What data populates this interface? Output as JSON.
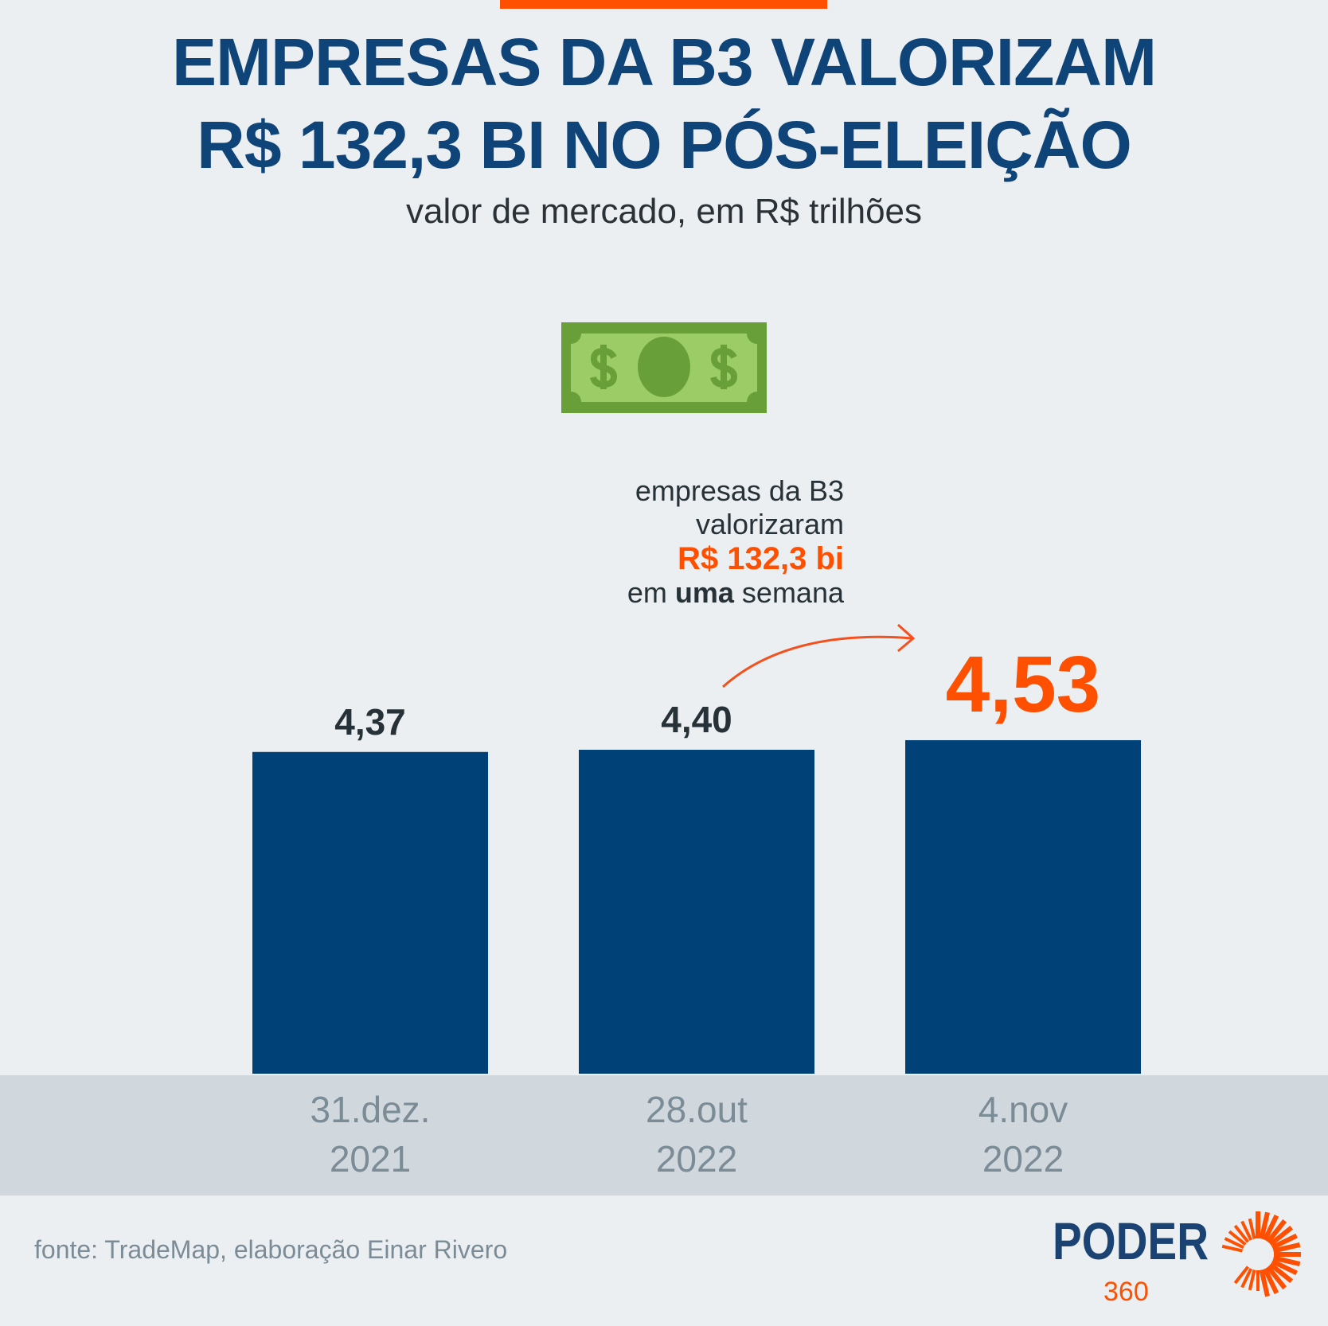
{
  "header": {
    "title_line1": "EMPRESAS DA B3 VALORIZAM",
    "title_line2": "R$ 132,3 BI NO PÓS-ELEIÇÃO",
    "subtitle": "valor de mercado, em R$ trilhões"
  },
  "annotation": {
    "line1": "empresas da B3",
    "line2": "valorizaram",
    "highlight": "R$ 132,3 bi",
    "line4_pre": "em ",
    "line4_bold": "uma",
    "line4_post": " semana"
  },
  "chart_data": {
    "type": "bar",
    "title": "EMPRESAS DA B3 VALORIZAM R$ 132,3 BI NO PÓS-ELEIÇÃO",
    "subtitle": "valor de mercado, em R$ trilhões",
    "categories": [
      [
        "31.dez.",
        "2021"
      ],
      [
        "28.out",
        "2022"
      ],
      [
        "4.nov",
        "2022"
      ]
    ],
    "values": [
      4.37,
      4.4,
      4.53
    ],
    "value_labels": [
      "4,37",
      "4,40",
      "4,53"
    ],
    "highlight_index": 2,
    "grid": false,
    "colors": {
      "bar": "#004178",
      "label": "#263238",
      "highlight": "#fe5000",
      "tick": "#7b8c97"
    }
  },
  "footer": {
    "source": "fonte: TradeMap, elaboração Einar Rivero",
    "logo_text": "PODER",
    "logo_number": "360"
  },
  "icons": {
    "money": "dollar-bill-icon",
    "arrow": "curved-arrow-icon"
  }
}
